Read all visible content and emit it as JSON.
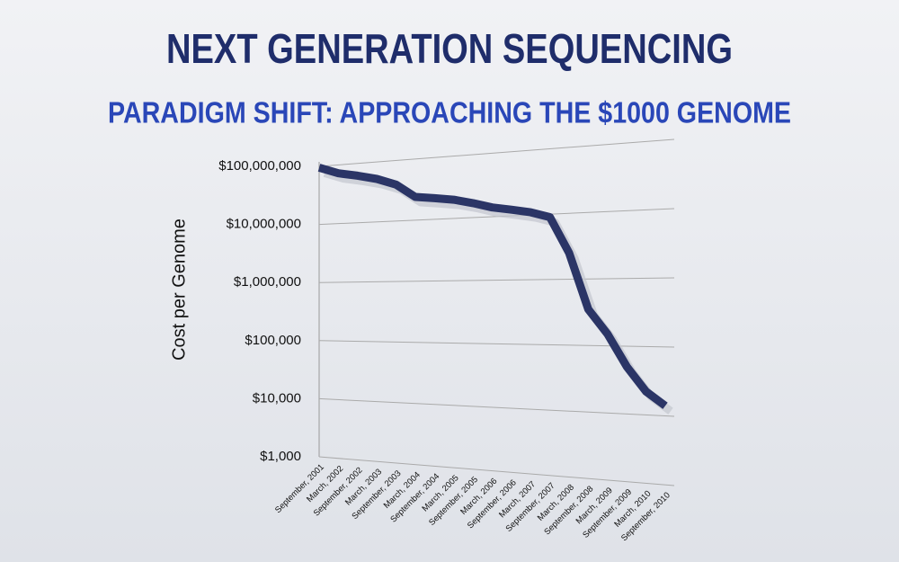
{
  "chart_data": {
    "type": "line",
    "title": "NEXT GENERATION SEQUENCING",
    "subtitle": "PARADIGM SHIFT: APPROACHING THE $1000 GENOME",
    "y_label": "Cost per Genome",
    "categories": [
      "September, 2001",
      "March, 2002",
      "September, 2002",
      "March, 2003",
      "September, 2003",
      "March, 2004",
      "September, 2004",
      "March, 2005",
      "September, 2005",
      "March, 2006",
      "September, 2006",
      "March, 2007",
      "September, 2007",
      "March, 2008",
      "September, 2008",
      "March, 2009",
      "September, 2009",
      "March, 2010",
      "September, 2010"
    ],
    "series": [
      {
        "name": "Cost per Genome",
        "color": "#2b3566",
        "values": [
          95000000,
          72000000,
          62000000,
          52000000,
          40000000,
          24000000,
          22000000,
          20000000,
          17000000,
          14000000,
          12500000,
          11000000,
          9000000,
          2500000,
          350000,
          150000,
          50000,
          22000,
          14000
        ]
      }
    ],
    "log_scale": true,
    "grid": true,
    "ylim": [
      1000,
      100000000
    ],
    "yticks": [
      {
        "value": 1000,
        "label": "$1,000"
      },
      {
        "value": 10000,
        "label": "$10,000"
      },
      {
        "value": 100000,
        "label": "$100,000"
      },
      {
        "value": 1000000,
        "label": "$1,000,000"
      },
      {
        "value": 10000000,
        "label": "$10,000,000"
      },
      {
        "value": 100000000,
        "label": "$100,000,000"
      }
    ]
  }
}
